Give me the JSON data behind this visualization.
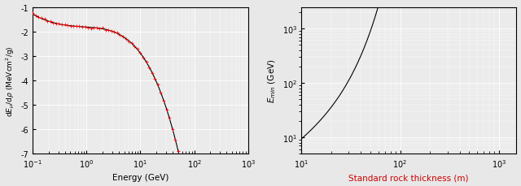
{
  "left": {
    "xlabel": "Energy (GeV)",
    "ylabel": "dE_{\\mu}/d\\rho (MeVcm^2/g)",
    "xlim": [
      0.1,
      1000
    ],
    "ylim": [
      -7,
      -1
    ],
    "yticks": [
      -7,
      -6,
      -5,
      -4,
      -3,
      -2,
      -1
    ],
    "line_color": "#000000",
    "dot_color": "#cc0000",
    "bg_color": "#ebebeb",
    "grid_color": "#ffffff",
    "figsize": [
      6.4,
      2.3
    ]
  },
  "right": {
    "xlabel": "Standard rock thickness (m)",
    "ylabel": "E_{min} (GeV)",
    "xlim": [
      10,
      1500
    ],
    "ylim": [
      5,
      2500
    ],
    "xlabel_color": "#cc0000",
    "line_color": "#000000",
    "bg_color": "#ebebeb",
    "grid_color": "#ffffff"
  }
}
